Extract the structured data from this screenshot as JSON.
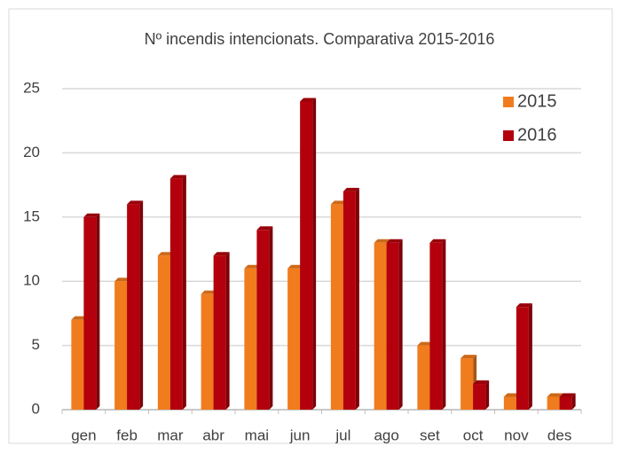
{
  "chart_data": {
    "type": "bar",
    "title": "Nº incendis intencionats. Comparativa 2015-2016",
    "categories": [
      "gen",
      "feb",
      "mar",
      "abr",
      "mai",
      "jun",
      "jul",
      "ago",
      "set",
      "oct",
      "nov",
      "des"
    ],
    "series": [
      {
        "name": "2015",
        "color": "#f07c1e",
        "values": [
          7,
          10,
          12,
          9,
          11,
          11,
          16,
          13,
          5,
          4,
          1,
          1
        ]
      },
      {
        "name": "2016",
        "color": "#b3000c",
        "values": [
          15,
          16,
          18,
          12,
          14,
          24,
          17,
          13,
          13,
          2,
          8,
          1
        ]
      }
    ],
    "ylim": [
      0,
      25
    ],
    "yticks": [
      0,
      5,
      10,
      15,
      20,
      25
    ],
    "grid": true,
    "legend": "top-right"
  }
}
